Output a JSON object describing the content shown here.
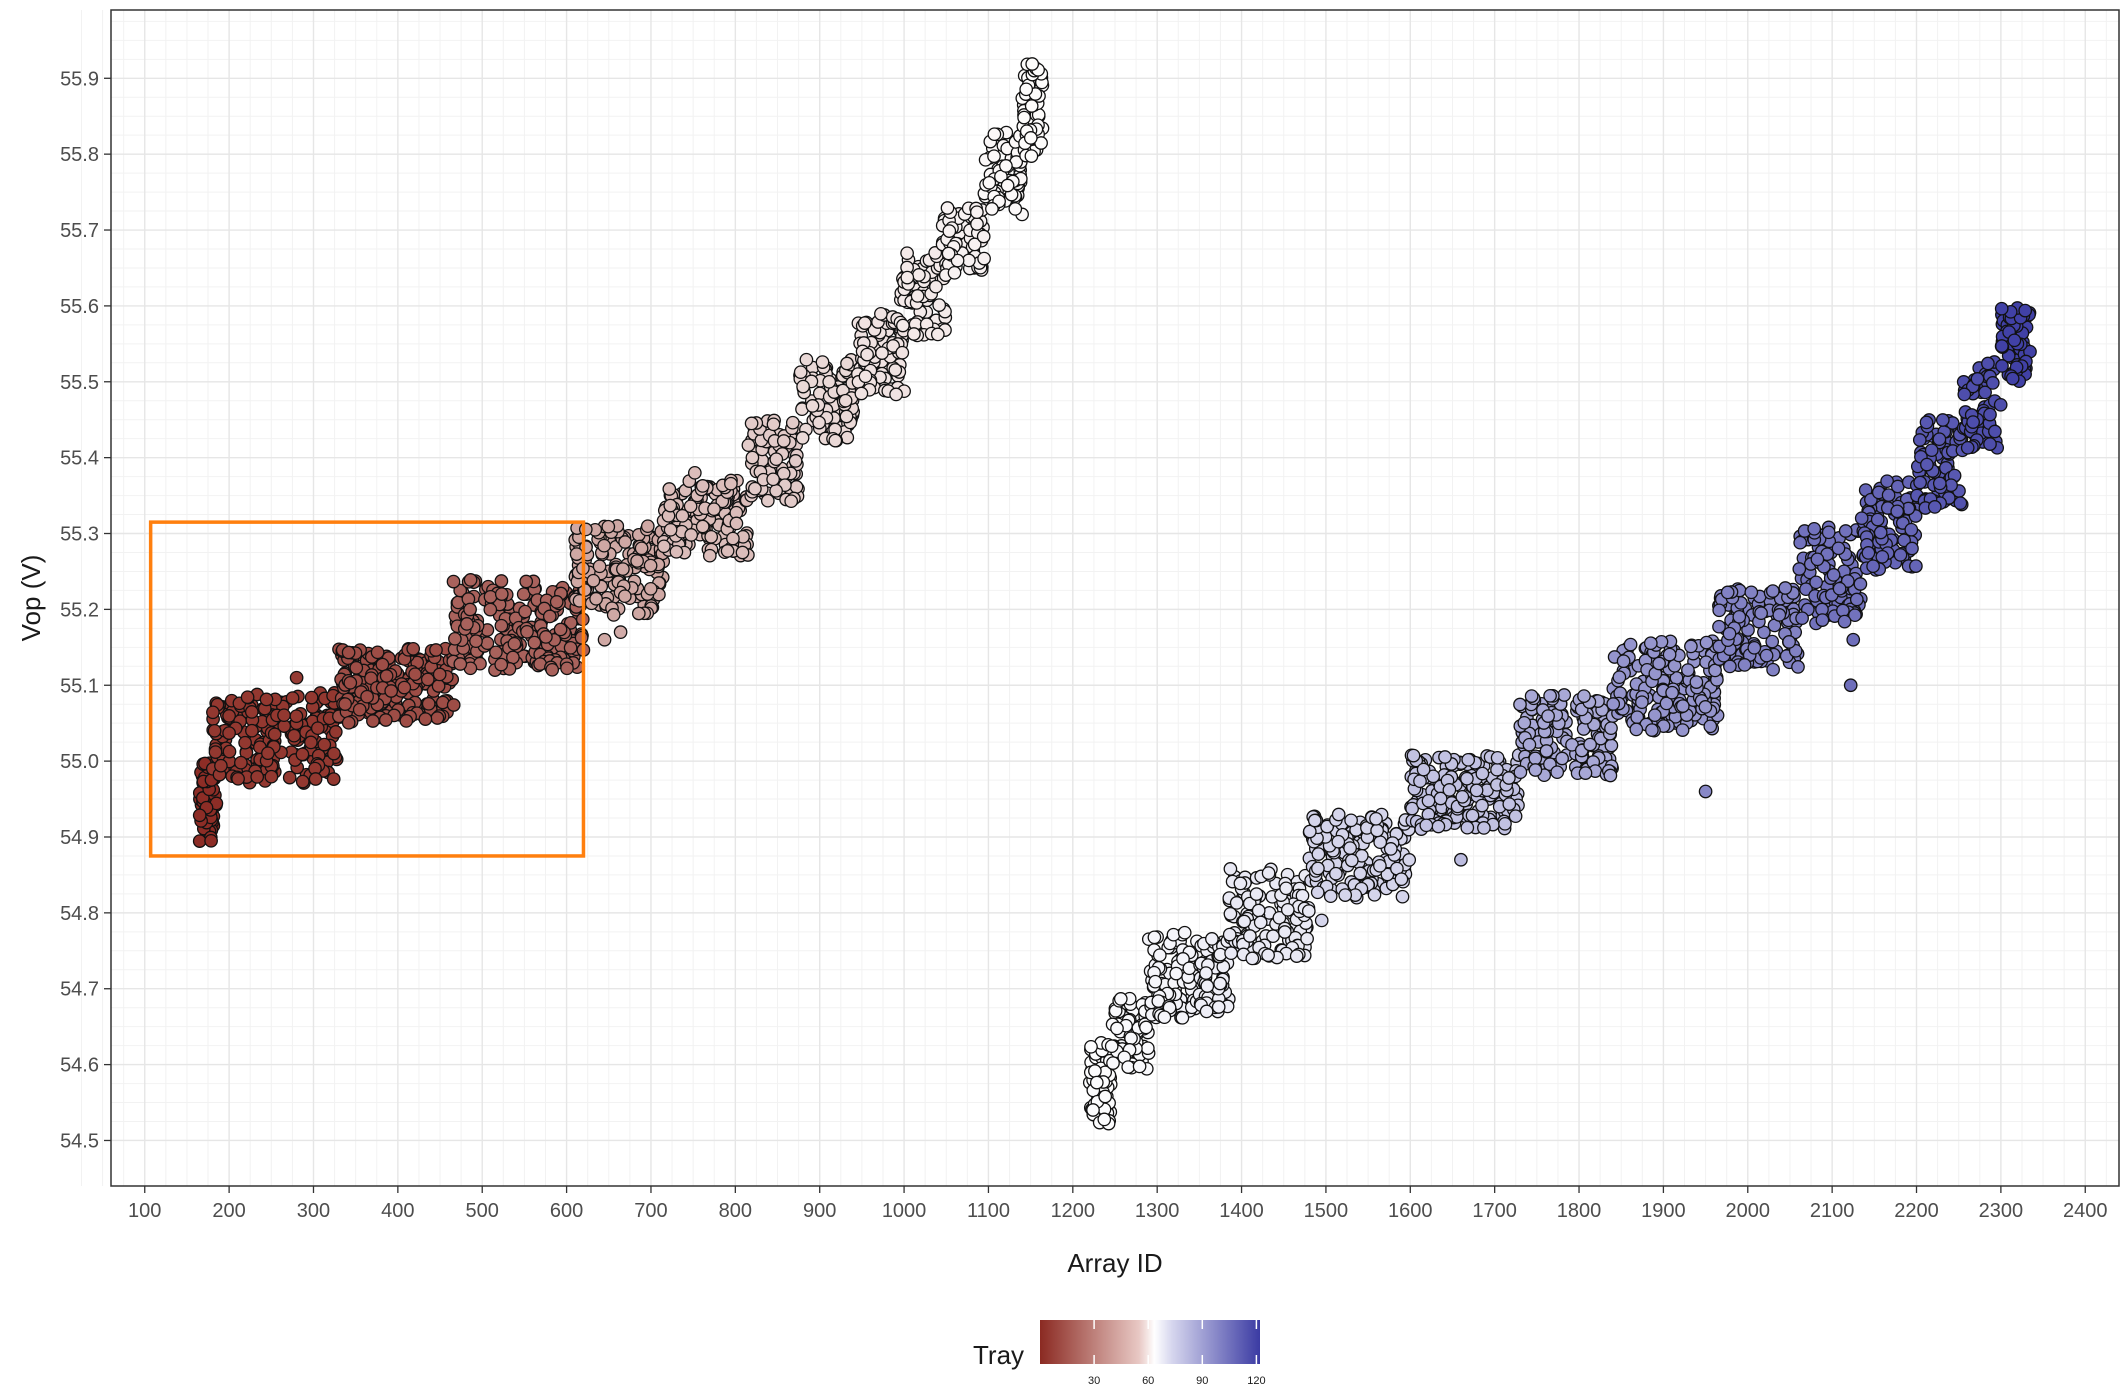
{
  "chart_data": {
    "type": "scatter",
    "title": "",
    "xlabel": "Array ID",
    "ylabel": "Vop (V)",
    "xlim": [
      60,
      2440
    ],
    "ylim": [
      54.44,
      55.99
    ],
    "x_ticks": [
      100,
      200,
      300,
      400,
      500,
      600,
      700,
      800,
      900,
      1000,
      1100,
      1200,
      1300,
      1400,
      1500,
      1600,
      1700,
      1800,
      1900,
      2000,
      2100,
      2200,
      2300,
      2400
    ],
    "y_ticks": [
      54.5,
      54.6,
      54.7,
      54.8,
      54.9,
      55.0,
      55.1,
      55.2,
      55.3,
      55.4,
      55.5,
      55.6,
      55.7,
      55.8,
      55.9
    ],
    "grid": true,
    "legend": {
      "title": "Tray",
      "position": "bottom",
      "range": [
        0,
        122
      ],
      "breaks": [
        30,
        60,
        90,
        120
      ],
      "colors": {
        "low": "#8b2a22",
        "mid": "#ffffff",
        "high": "#3b3ba3"
      }
    },
    "highlight_box": {
      "x": [
        107,
        620
      ],
      "y": [
        54.875,
        55.315
      ],
      "color": "#ff7f0e"
    },
    "clusters": [
      {
        "tray": 1,
        "x": [
          165,
          185
        ],
        "y": [
          54.89,
          55.0
        ]
      },
      {
        "tray": 4,
        "x": [
          180,
          330
        ],
        "y": [
          54.97,
          55.09
        ]
      },
      {
        "tray": 10,
        "x": [
          330,
          470
        ],
        "y": [
          55.05,
          55.15
        ]
      },
      {
        "tray": 16,
        "x": [
          465,
          620
        ],
        "y": [
          55.12,
          55.24
        ]
      },
      {
        "tray": 36,
        "x": [
          610,
          715
        ],
        "y": [
          55.19,
          55.31
        ]
      },
      {
        "tray": 42,
        "x": [
          715,
          815
        ],
        "y": [
          55.27,
          55.37
        ]
      },
      {
        "tray": 46,
        "x": [
          815,
          875
        ],
        "y": [
          55.34,
          55.45
        ]
      },
      {
        "tray": 50,
        "x": [
          875,
          940
        ],
        "y": [
          55.42,
          55.53
        ]
      },
      {
        "tray": 53,
        "x": [
          945,
          1000
        ],
        "y": [
          55.48,
          55.59
        ]
      },
      {
        "tray": 55,
        "x": [
          995,
          1050
        ],
        "y": [
          55.56,
          55.67
        ]
      },
      {
        "tray": 57,
        "x": [
          1045,
          1095
        ],
        "y": [
          55.64,
          55.73
        ]
      },
      {
        "tray": 59,
        "x": [
          1095,
          1140
        ],
        "y": [
          55.72,
          55.83
        ]
      },
      {
        "tray": 60,
        "x": [
          1140,
          1165
        ],
        "y": [
          55.79,
          55.92
        ]
      },
      {
        "tray": 62,
        "x": [
          1220,
          1245
        ],
        "y": [
          54.52,
          54.63
        ]
      },
      {
        "tray": 63,
        "x": [
          1245,
          1290
        ],
        "y": [
          54.59,
          54.69
        ]
      },
      {
        "tray": 64,
        "x": [
          1290,
          1350
        ],
        "y": [
          54.66,
          54.78
        ]
      },
      {
        "tray": 66,
        "x": [
          1350,
          1385
        ],
        "y": [
          54.67,
          54.77
        ]
      },
      {
        "tray": 68,
        "x": [
          1385,
          1480
        ],
        "y": [
          54.74,
          54.86
        ]
      },
      {
        "tray": 74,
        "x": [
          1480,
          1600
        ],
        "y": [
          54.82,
          54.93
        ]
      },
      {
        "tray": 80,
        "x": [
          1600,
          1730
        ],
        "y": [
          54.91,
          55.01
        ]
      },
      {
        "tray": 88,
        "x": [
          1730,
          1840
        ],
        "y": [
          54.98,
          55.09
        ]
      },
      {
        "tray": 94,
        "x": [
          1840,
          1965
        ],
        "y": [
          55.04,
          55.16
        ]
      },
      {
        "tray": 100,
        "x": [
          1965,
          2060
        ],
        "y": [
          55.12,
          55.23
        ]
      },
      {
        "tray": 105,
        "x": [
          2060,
          2135
        ],
        "y": [
          55.18,
          55.31
        ]
      },
      {
        "tray": 109,
        "x": [
          2135,
          2200
        ],
        "y": [
          55.25,
          55.37
        ]
      },
      {
        "tray": 113,
        "x": [
          2200,
          2255
        ],
        "y": [
          55.33,
          55.45
        ]
      },
      {
        "tray": 116,
        "x": [
          2255,
          2300
        ],
        "y": [
          55.41,
          55.53
        ]
      },
      {
        "tray": 120,
        "x": [
          2300,
          2335
        ],
        "y": [
          55.5,
          55.6
        ]
      }
    ],
    "outliers": [
      {
        "x": 280,
        "y": 55.11,
        "tray": 5
      },
      {
        "x": 645,
        "y": 55.16,
        "tray": 36
      },
      {
        "x": 664,
        "y": 55.17,
        "tray": 37
      },
      {
        "x": 752,
        "y": 55.38,
        "tray": 42
      },
      {
        "x": 1495,
        "y": 54.79,
        "tray": 74
      },
      {
        "x": 1660,
        "y": 54.87,
        "tray": 82
      },
      {
        "x": 1950,
        "y": 54.96,
        "tray": 98
      },
      {
        "x": 2122,
        "y": 55.1,
        "tray": 106
      },
      {
        "x": 2125,
        "y": 55.16,
        "tray": 106
      },
      {
        "x": 2252,
        "y": 55.34,
        "tray": 115
      }
    ]
  }
}
